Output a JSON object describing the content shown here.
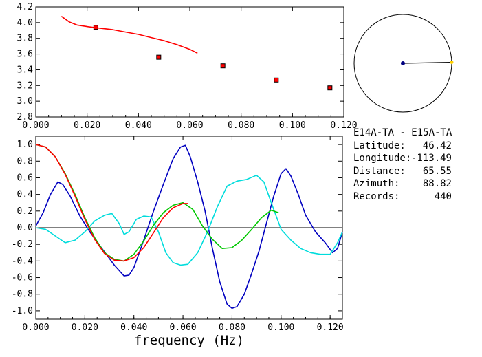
{
  "chart_data": [
    {
      "type": "scatter",
      "xlim": [
        0.0,
        0.12
      ],
      "ylim": [
        2.8,
        4.2
      ],
      "xticks": [
        "0.000",
        "0.020",
        "0.040",
        "0.060",
        "0.080",
        "0.100",
        "0.120"
      ],
      "yticks": [
        "2.8",
        "3.0",
        "3.2",
        "3.4",
        "3.6",
        "3.8",
        "4.0",
        "4.2"
      ],
      "series": [
        {
          "kind": "line",
          "color": "#ff0000",
          "x": [
            0.01,
            0.013,
            0.016,
            0.02,
            0.025,
            0.03,
            0.035,
            0.04,
            0.045,
            0.05,
            0.055,
            0.06,
            0.063
          ],
          "y": [
            4.08,
            4.01,
            3.97,
            3.95,
            3.93,
            3.91,
            3.88,
            3.85,
            3.81,
            3.77,
            3.72,
            3.66,
            3.61
          ]
        },
        {
          "kind": "points",
          "color": "#ff0000",
          "x": [
            0.0234,
            0.0479,
            0.0729,
            0.0937,
            0.1146
          ],
          "y": [
            3.94,
            3.56,
            3.45,
            3.27,
            3.17
          ]
        }
      ]
    },
    {
      "type": "line",
      "xlim": [
        0.0,
        0.125
      ],
      "ylim": [
        -1.1,
        1.1
      ],
      "xticks": [
        "0.000",
        "0.020",
        "0.040",
        "0.060",
        "0.080",
        "0.100",
        "0.120"
      ],
      "yticks": [
        "1.0",
        "0.8",
        "0.6",
        "0.4",
        "0.2",
        "0.0",
        "-0.2",
        "-0.4",
        "-0.6",
        "-0.8",
        "-1.0"
      ],
      "xlabel": "frequency (Hz)",
      "series": [
        {
          "color": "#0000c0",
          "x": [
            0,
            0.003,
            0.006,
            0.009,
            0.011,
            0.014,
            0.018,
            0.022,
            0.027,
            0.032,
            0.036,
            0.038,
            0.04,
            0.044,
            0.048,
            0.052,
            0.056,
            0.059,
            0.061,
            0.063,
            0.066,
            0.069,
            0.072,
            0.075,
            0.078,
            0.08,
            0.082,
            0.085,
            0.088,
            0.091,
            0.094,
            0.097,
            0.1,
            0.102,
            0.104,
            0.107,
            0.11,
            0.114,
            0.118,
            0.121,
            0.123,
            0.125
          ],
          "y": [
            0.02,
            0.18,
            0.4,
            0.55,
            0.52,
            0.38,
            0.14,
            -0.05,
            -0.25,
            -0.45,
            -0.58,
            -0.57,
            -0.48,
            -0.15,
            0.2,
            0.52,
            0.83,
            0.97,
            0.99,
            0.85,
            0.55,
            0.2,
            -0.25,
            -0.65,
            -0.92,
            -0.97,
            -0.95,
            -0.8,
            -0.55,
            -0.28,
            0.05,
            0.38,
            0.65,
            0.71,
            0.62,
            0.4,
            0.15,
            -0.05,
            -0.18,
            -0.3,
            -0.25,
            -0.05
          ]
        },
        {
          "color": "#00dcdc",
          "x": [
            0,
            0.004,
            0.008,
            0.012,
            0.016,
            0.02,
            0.024,
            0.028,
            0.031,
            0.034,
            0.036,
            0.038,
            0.041,
            0.044,
            0.047,
            0.05,
            0.053,
            0.056,
            0.059,
            0.062,
            0.066,
            0.07,
            0.074,
            0.078,
            0.082,
            0.086,
            0.09,
            0.093,
            0.096,
            0.1,
            0.104,
            0.108,
            0.112,
            0.116,
            0.12,
            0.123,
            0.125
          ],
          "y": [
            0.0,
            -0.02,
            -0.1,
            -0.18,
            -0.15,
            -0.05,
            0.08,
            0.15,
            0.17,
            0.05,
            -0.08,
            -0.05,
            0.1,
            0.14,
            0.13,
            -0.05,
            -0.3,
            -0.42,
            -0.45,
            -0.44,
            -0.3,
            -0.05,
            0.25,
            0.5,
            0.56,
            0.58,
            0.63,
            0.55,
            0.3,
            -0.02,
            -0.15,
            -0.25,
            -0.3,
            -0.32,
            -0.32,
            -0.18,
            -0.05
          ]
        },
        {
          "color": "#00c800",
          "x": [
            0,
            0.004,
            0.008,
            0.012,
            0.016,
            0.02,
            0.024,
            0.028,
            0.032,
            0.036,
            0.04,
            0.044,
            0.048,
            0.052,
            0.056,
            0.06,
            0.064,
            0.068,
            0.072,
            0.076,
            0.08,
            0.084,
            0.088,
            0.092,
            0.096,
            0.099
          ],
          "y": [
            1.0,
            0.97,
            0.85,
            0.65,
            0.4,
            0.12,
            -0.12,
            -0.3,
            -0.38,
            -0.4,
            -0.32,
            -0.16,
            0.03,
            0.18,
            0.27,
            0.3,
            0.22,
            0.02,
            -0.14,
            -0.25,
            -0.24,
            -0.15,
            -0.02,
            0.12,
            0.21,
            0.18
          ]
        },
        {
          "color": "#ff0000",
          "x": [
            0,
            0.004,
            0.008,
            0.012,
            0.016,
            0.02,
            0.024,
            0.028,
            0.032,
            0.036,
            0.04,
            0.044,
            0.048,
            0.052,
            0.056,
            0.06,
            0.062
          ],
          "y": [
            1.0,
            0.97,
            0.85,
            0.64,
            0.38,
            0.1,
            -0.14,
            -0.31,
            -0.39,
            -0.4,
            -0.36,
            -0.24,
            -0.06,
            0.12,
            0.24,
            0.29,
            0.29
          ]
        }
      ]
    }
  ],
  "polar": {
    "dot_color": "#000080",
    "end_color": "#ffd000",
    "azimuth_deg": 88.82,
    "radius_fraction": 1.0
  },
  "info": {
    "title": "E14A-TA - E15A-TA",
    "rows": [
      {
        "key": "Latitude:",
        "value": "46.42"
      },
      {
        "key": "Longitude:",
        "value": "-113.49"
      },
      {
        "key": "Distance:",
        "value": "65.55"
      },
      {
        "key": "Azimuth:",
        "value": "88.82"
      },
      {
        "key": "Records:",
        "value": "440"
      }
    ]
  }
}
